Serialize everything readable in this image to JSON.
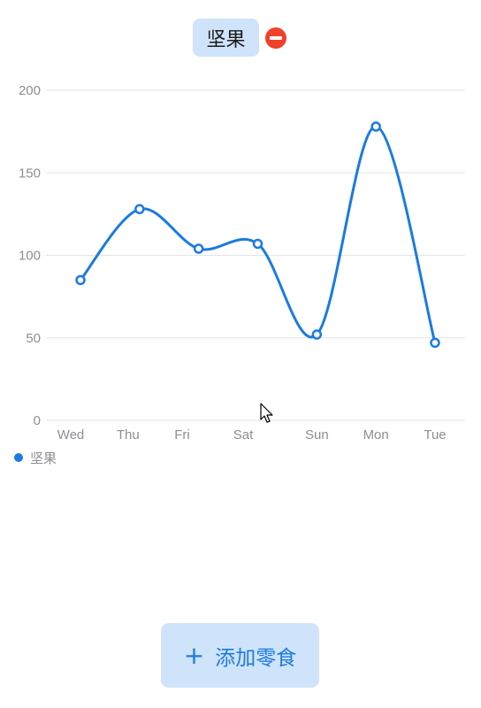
{
  "tag": {
    "label": "坚果",
    "remove_icon": "minus-circle-icon"
  },
  "chart_data": {
    "type": "line",
    "categories": [
      "Wed",
      "Thu",
      "Fri",
      "Sat",
      "Sun",
      "Mon",
      "Tue"
    ],
    "series": [
      {
        "name": "坚果",
        "values": [
          85,
          128,
          104,
          107,
          52,
          178,
          47
        ],
        "color": "#1b7be0"
      }
    ],
    "ylim": [
      0,
      200
    ],
    "yticks": [
      0,
      50,
      100,
      150,
      200
    ],
    "grid": true,
    "legend": "bottom-left",
    "smooth": true
  },
  "legend": {
    "label": "坚果",
    "color": "#1b7be0"
  },
  "add_button": {
    "icon": "plus-icon",
    "plus": "+",
    "label": "添加零食"
  },
  "colors": {
    "accent": "#1b7be0",
    "chip_bg": "#cfe3fb",
    "remove": "#f0412b"
  }
}
